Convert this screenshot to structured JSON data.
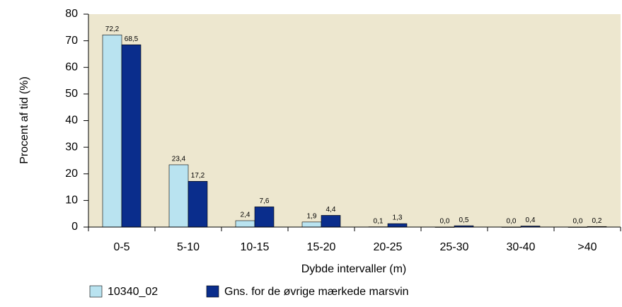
{
  "chart_data": {
    "type": "bar",
    "y_label": "Procent af tid (%)",
    "x_label": "Dybde intervaller (m)",
    "categories": [
      "0-5",
      "5-10",
      "10-15",
      "15-20",
      "20-25",
      "25-30",
      "30-40",
      ">40"
    ],
    "series": [
      {
        "name": "10340_02",
        "color": "#b9e3f0",
        "values": [
          72.2,
          23.4,
          2.4,
          1.9,
          0.1,
          0.0,
          0.0,
          0.0
        ],
        "value_labels": [
          "72,2",
          "23,4",
          "2,4",
          "1,9",
          "0,1",
          "0,0",
          "0,0",
          "0,0"
        ]
      },
      {
        "name": "Gns. for de øvrige mærkede marsvin",
        "color": "#0a2d8c",
        "values": [
          68.5,
          17.2,
          7.6,
          4.4,
          1.3,
          0.5,
          0.4,
          0.2
        ],
        "value_labels": [
          "68,5",
          "17,2",
          "7,6",
          "4,4",
          "1,3",
          "0,5",
          "0,4",
          "0,2"
        ]
      }
    ],
    "ylim": [
      0,
      80
    ],
    "yticks": [
      0,
      10,
      20,
      30,
      40,
      50,
      60,
      70,
      80
    ],
    "background": "#ede7cf"
  }
}
